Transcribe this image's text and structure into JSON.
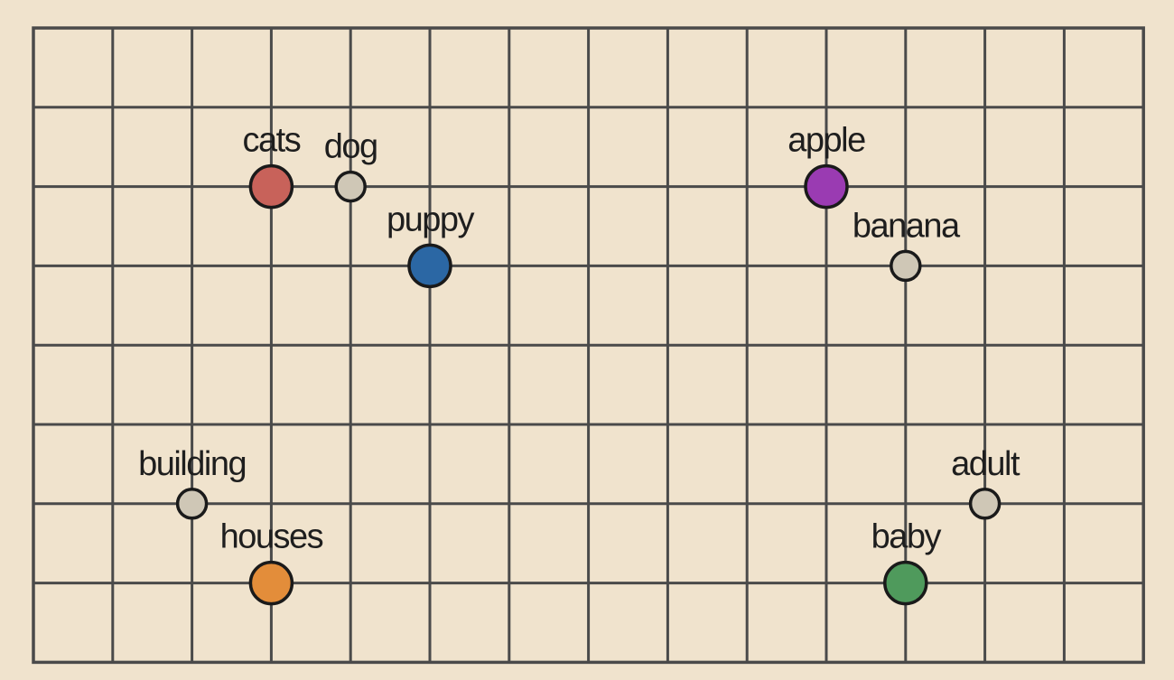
{
  "diagram": {
    "background_color": "#f0e3cd",
    "grid_color": "#4a4a4a",
    "columns": 14,
    "rows": 8,
    "points": [
      {
        "word": "cats",
        "col": 3,
        "row": 2,
        "color": "#c8625a",
        "size": "large"
      },
      {
        "word": "dog",
        "col": 4,
        "row": 2,
        "color": "#cfc7b6",
        "size": "small"
      },
      {
        "word": "puppy",
        "col": 5,
        "row": 3,
        "color": "#2b67a4",
        "size": "large"
      },
      {
        "word": "apple",
        "col": 10,
        "row": 2,
        "color": "#9a3bb2",
        "size": "large"
      },
      {
        "word": "banana",
        "col": 11,
        "row": 3,
        "color": "#cfc7b6",
        "size": "small"
      },
      {
        "word": "building",
        "col": 2,
        "row": 6,
        "color": "#cfc7b6",
        "size": "small"
      },
      {
        "word": "houses",
        "col": 3,
        "row": 7,
        "color": "#e38d3a",
        "size": "large"
      },
      {
        "word": "adult",
        "col": 12,
        "row": 6,
        "color": "#cfc7b6",
        "size": "small"
      },
      {
        "word": "baby",
        "col": 11,
        "row": 7,
        "color": "#4f9a5c",
        "size": "large"
      }
    ]
  }
}
